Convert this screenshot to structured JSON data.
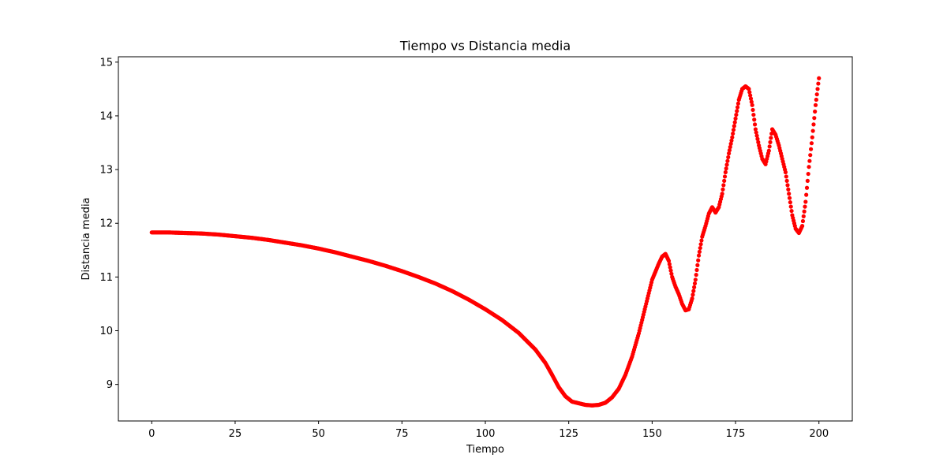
{
  "chart_data": {
    "type": "scatter",
    "title": "Tiempo vs Distancia media",
    "xlabel": "Tiempo",
    "ylabel": "Distancia media",
    "xlim": [
      -10,
      210
    ],
    "ylim": [
      8.32,
      15.1
    ],
    "xticks": [
      0,
      25,
      50,
      75,
      100,
      125,
      150,
      175,
      200
    ],
    "yticks": [
      9,
      10,
      11,
      12,
      13,
      14,
      15
    ],
    "xtick_labels": [
      "0",
      "25",
      "50",
      "75",
      "100",
      "125",
      "150",
      "175",
      "200"
    ],
    "ytick_labels": [
      "9",
      "10",
      "11",
      "12",
      "13",
      "14",
      "15"
    ],
    "grid": false,
    "legend": "none",
    "marker_color": "#ff0000",
    "series": [
      {
        "points": [
          [
            0,
            11.83
          ],
          [
            5,
            11.83
          ],
          [
            10,
            11.82
          ],
          [
            15,
            11.81
          ],
          [
            20,
            11.79
          ],
          [
            25,
            11.76
          ],
          [
            30,
            11.73
          ],
          [
            35,
            11.69
          ],
          [
            40,
            11.64
          ],
          [
            45,
            11.59
          ],
          [
            50,
            11.53
          ],
          [
            55,
            11.46
          ],
          [
            60,
            11.38
          ],
          [
            65,
            11.3
          ],
          [
            70,
            11.21
          ],
          [
            75,
            11.11
          ],
          [
            80,
            11.0
          ],
          [
            85,
            10.88
          ],
          [
            90,
            10.74
          ],
          [
            95,
            10.58
          ],
          [
            100,
            10.4
          ],
          [
            105,
            10.2
          ],
          [
            110,
            9.96
          ],
          [
            115,
            9.65
          ],
          [
            118,
            9.4
          ],
          [
            120,
            9.18
          ],
          [
            122,
            8.95
          ],
          [
            124,
            8.78
          ],
          [
            126,
            8.68
          ],
          [
            128,
            8.65
          ],
          [
            130,
            8.62
          ],
          [
            132,
            8.61
          ],
          [
            134,
            8.62
          ],
          [
            136,
            8.66
          ],
          [
            138,
            8.76
          ],
          [
            140,
            8.92
          ],
          [
            142,
            9.18
          ],
          [
            144,
            9.52
          ],
          [
            146,
            9.95
          ],
          [
            148,
            10.45
          ],
          [
            150,
            10.95
          ],
          [
            152,
            11.25
          ],
          [
            153,
            11.38
          ],
          [
            154,
            11.43
          ],
          [
            155,
            11.3
          ],
          [
            156,
            11.0
          ],
          [
            157,
            10.82
          ],
          [
            158,
            10.68
          ],
          [
            159,
            10.5
          ],
          [
            160,
            10.38
          ],
          [
            161,
            10.4
          ],
          [
            162,
            10.6
          ],
          [
            163,
            10.95
          ],
          [
            164,
            11.4
          ],
          [
            165,
            11.75
          ],
          [
            166,
            11.95
          ],
          [
            167,
            12.18
          ],
          [
            168,
            12.3
          ],
          [
            169,
            12.2
          ],
          [
            170,
            12.3
          ],
          [
            171,
            12.55
          ],
          [
            172,
            12.95
          ],
          [
            173,
            13.3
          ],
          [
            174,
            13.6
          ],
          [
            175,
            13.95
          ],
          [
            176,
            14.3
          ],
          [
            177,
            14.5
          ],
          [
            178,
            14.55
          ],
          [
            179,
            14.5
          ],
          [
            180,
            14.2
          ],
          [
            181,
            13.75
          ],
          [
            182,
            13.45
          ],
          [
            183,
            13.2
          ],
          [
            184,
            13.1
          ],
          [
            185,
            13.35
          ],
          [
            186,
            13.75
          ],
          [
            187,
            13.65
          ],
          [
            188,
            13.45
          ],
          [
            189,
            13.2
          ],
          [
            190,
            12.95
          ],
          [
            191,
            12.55
          ],
          [
            192,
            12.15
          ],
          [
            193,
            11.9
          ],
          [
            194,
            11.82
          ],
          [
            195,
            11.95
          ],
          [
            196,
            12.4
          ],
          [
            197,
            13.05
          ],
          [
            198,
            13.6
          ],
          [
            199,
            14.2
          ],
          [
            200,
            14.7
          ]
        ]
      }
    ]
  }
}
